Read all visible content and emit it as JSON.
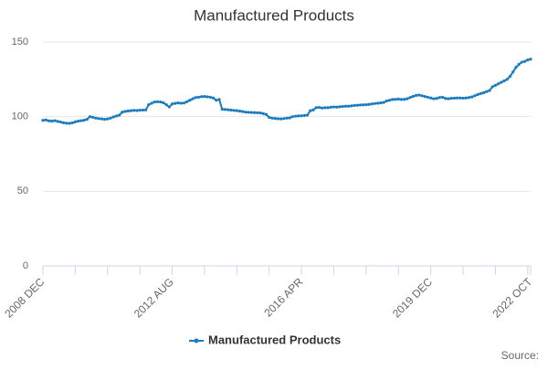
{
  "chart_data": {
    "type": "line",
    "title": "Manufactured Products",
    "categories": [
      "2008 DEC",
      null,
      null,
      null,
      null,
      null,
      null,
      null,
      null,
      null,
      null,
      null,
      null,
      null,
      null,
      null,
      null,
      null,
      null,
      null,
      null,
      null,
      null,
      null,
      null,
      null,
      null,
      null,
      null,
      null,
      null,
      null,
      null,
      null,
      null,
      null,
      null,
      null,
      null,
      null,
      null,
      null,
      null,
      null,
      "2012 AUG",
      null,
      null,
      null,
      null,
      null,
      null,
      null,
      null,
      null,
      null,
      null,
      null,
      null,
      null,
      null,
      null,
      null,
      null,
      null,
      null,
      null,
      null,
      null,
      null,
      null,
      null,
      null,
      null,
      null,
      null,
      null,
      null,
      null,
      null,
      null,
      null,
      null,
      null,
      null,
      null,
      null,
      null,
      null,
      "2016 APR",
      null,
      null,
      null,
      null,
      null,
      null,
      null,
      null,
      null,
      null,
      null,
      null,
      null,
      null,
      null,
      null,
      null,
      null,
      null,
      null,
      null,
      null,
      null,
      null,
      null,
      null,
      null,
      null,
      null,
      null,
      null,
      null,
      null,
      null,
      null,
      null,
      null,
      null,
      null,
      null,
      null,
      null,
      null,
      "2019 DEC",
      null,
      null,
      null,
      null,
      null,
      null,
      null,
      null,
      null,
      null,
      null,
      null,
      null,
      null,
      null,
      null,
      null,
      null,
      null,
      null,
      null,
      null,
      null,
      null,
      null,
      null,
      null,
      null,
      null,
      null,
      null,
      null,
      null,
      "2022 OCT"
    ],
    "series": [
      {
        "name": "Manufactured Products",
        "color": "#1b7cc0",
        "values": [
          97.5,
          97.8,
          97.2,
          97.0,
          97.3,
          96.8,
          96.4,
          95.9,
          95.6,
          95.5,
          95.8,
          96.5,
          97.0,
          97.3,
          97.6,
          98.2,
          100.0,
          99.6,
          99.0,
          98.7,
          98.5,
          98.2,
          98.5,
          99.0,
          99.8,
          100.4,
          101.0,
          103.0,
          103.5,
          103.8,
          104.0,
          104.2,
          104.1,
          104.3,
          104.4,
          104.5,
          108.0,
          109.0,
          109.8,
          110.0,
          109.8,
          109.3,
          108.0,
          106.5,
          108.5,
          108.9,
          109.2,
          109.0,
          109.1,
          110.0,
          111.0,
          112.0,
          112.8,
          113.0,
          113.4,
          113.5,
          113.3,
          113.0,
          112.5,
          111.0,
          111.5,
          105.0,
          104.8,
          104.6,
          104.4,
          104.2,
          104.0,
          103.7,
          103.4,
          103.0,
          102.9,
          102.8,
          102.7,
          102.6,
          102.5,
          102.0,
          101.5,
          99.5,
          99.0,
          98.8,
          98.6,
          98.5,
          98.7,
          99.0,
          99.2,
          100.0,
          100.3,
          100.5,
          100.6,
          100.8,
          101.0,
          104.0,
          104.5,
          106.0,
          106.2,
          105.8,
          106.0,
          106.0,
          106.3,
          106.5,
          106.4,
          106.6,
          106.8,
          107.0,
          107.0,
          107.2,
          107.5,
          107.6,
          107.8,
          107.9,
          108.0,
          108.2,
          108.5,
          108.8,
          109.0,
          109.3,
          109.5,
          110.5,
          111.0,
          111.5,
          111.6,
          111.8,
          111.5,
          111.6,
          112.0,
          112.8,
          113.6,
          114.2,
          114.5,
          114.0,
          113.5,
          113.0,
          112.5,
          112.0,
          112.2,
          112.8,
          113.0,
          112.2,
          112.0,
          112.3,
          112.4,
          112.5,
          112.5,
          112.4,
          112.5,
          112.8,
          113.2,
          114.0,
          114.8,
          115.5,
          116.0,
          116.8,
          117.5,
          120.0,
          121.0,
          122.0,
          123.0,
          124.0,
          125.0,
          127.0,
          130.0,
          133.0,
          135.0,
          136.5,
          137.0,
          138.0,
          138.5
        ]
      }
    ],
    "ylim": [
      0,
      150
    ],
    "yticks": [
      0,
      50,
      100,
      150
    ],
    "grid": true,
    "legend": "bottom",
    "source": "Source:"
  }
}
